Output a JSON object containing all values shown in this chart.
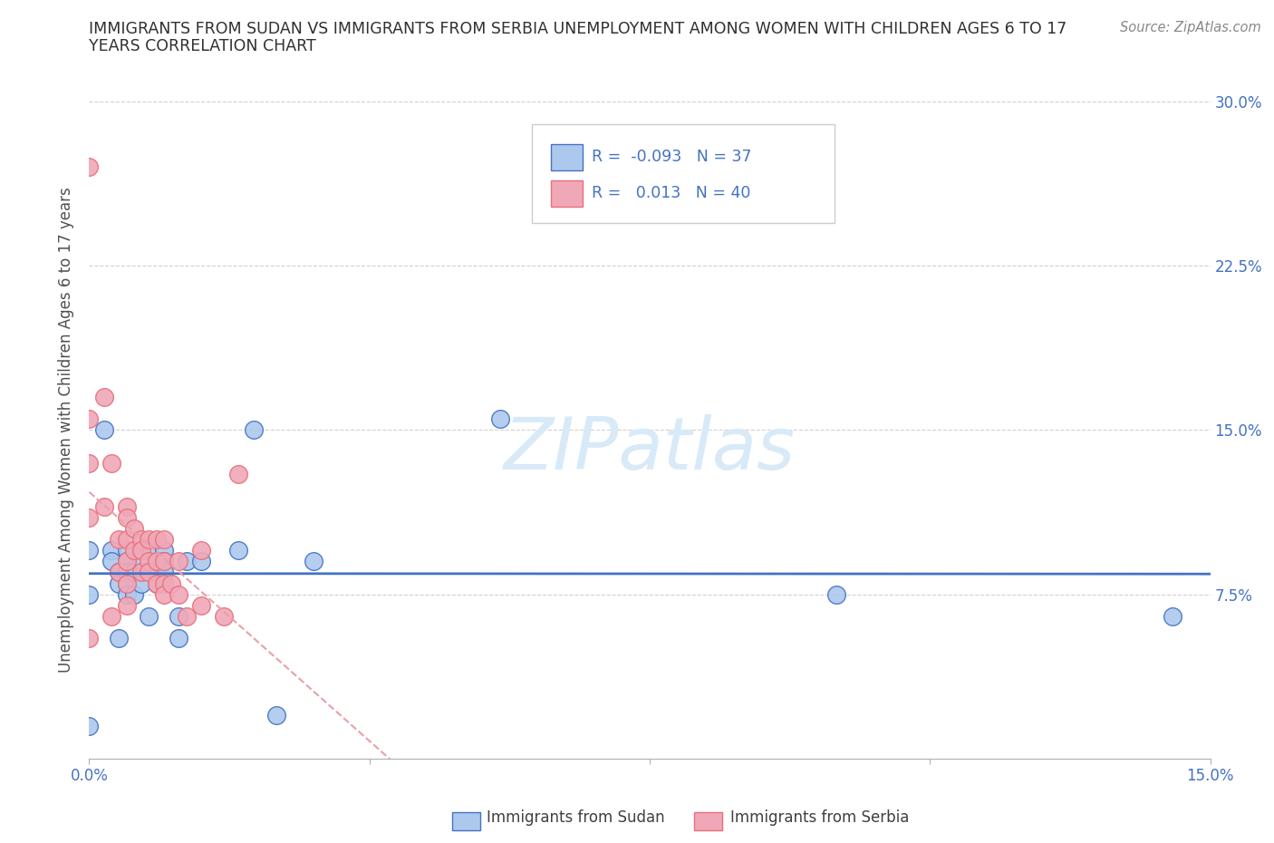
{
  "title_line1": "IMMIGRANTS FROM SUDAN VS IMMIGRANTS FROM SERBIA UNEMPLOYMENT AMONG WOMEN WITH CHILDREN AGES 6 TO 17",
  "title_line2": "YEARS CORRELATION CHART",
  "source_text": "Source: ZipAtlas.com",
  "ylabel": "Unemployment Among Women with Children Ages 6 to 17 years",
  "xlabel_sudan": "Immigrants from Sudan",
  "xlabel_serbia": "Immigrants from Serbia",
  "xlim": [
    0.0,
    0.15
  ],
  "ylim": [
    0.0,
    0.3
  ],
  "yticks": [
    0.0,
    0.075,
    0.15,
    0.225,
    0.3
  ],
  "ytick_labels": [
    "",
    "7.5%",
    "15.0%",
    "22.5%",
    "30.0%"
  ],
  "xticks": [
    0.0,
    0.0375,
    0.075,
    0.1125,
    0.15
  ],
  "xtick_labels": [
    "0.0%",
    "",
    "",
    "",
    "15.0%"
  ],
  "R_sudan": -0.093,
  "N_sudan": 37,
  "R_serbia": 0.013,
  "N_serbia": 40,
  "sudan_color": "#adc8ed",
  "serbia_color": "#f0a8b8",
  "sudan_edge_color": "#4472c4",
  "serbia_edge_color": "#e8707a",
  "sudan_line_color": "#4472c4",
  "serbia_line_color": "#e8a0a8",
  "watermark_color": "#d8eaf8",
  "grid_color": "#d0d0d0",
  "background_color": "#ffffff",
  "title_color": "#303030",
  "axis_label_color": "#505050",
  "tick_color": "#4472c4",
  "sudan_x": [
    0.0,
    0.0,
    0.0,
    0.002,
    0.003,
    0.003,
    0.004,
    0.004,
    0.004,
    0.005,
    0.005,
    0.005,
    0.005,
    0.005,
    0.005,
    0.006,
    0.006,
    0.007,
    0.007,
    0.008,
    0.008,
    0.009,
    0.009,
    0.01,
    0.01,
    0.01,
    0.012,
    0.012,
    0.013,
    0.015,
    0.02,
    0.022,
    0.025,
    0.03,
    0.055,
    0.1,
    0.145
  ],
  "sudan_y": [
    0.095,
    0.075,
    0.015,
    0.15,
    0.095,
    0.09,
    0.085,
    0.08,
    0.055,
    0.095,
    0.09,
    0.085,
    0.085,
    0.08,
    0.075,
    0.085,
    0.075,
    0.09,
    0.08,
    0.095,
    0.065,
    0.085,
    0.08,
    0.095,
    0.09,
    0.085,
    0.065,
    0.055,
    0.09,
    0.09,
    0.095,
    0.15,
    0.02,
    0.09,
    0.155,
    0.075,
    0.065
  ],
  "serbia_x": [
    0.0,
    0.0,
    0.0,
    0.0,
    0.0,
    0.002,
    0.002,
    0.003,
    0.003,
    0.004,
    0.004,
    0.005,
    0.005,
    0.005,
    0.005,
    0.005,
    0.005,
    0.006,
    0.006,
    0.007,
    0.007,
    0.007,
    0.008,
    0.008,
    0.008,
    0.009,
    0.009,
    0.009,
    0.01,
    0.01,
    0.01,
    0.01,
    0.011,
    0.012,
    0.012,
    0.013,
    0.015,
    0.015,
    0.018,
    0.02
  ],
  "serbia_y": [
    0.27,
    0.155,
    0.135,
    0.11,
    0.055,
    0.165,
    0.115,
    0.135,
    0.065,
    0.1,
    0.085,
    0.115,
    0.11,
    0.1,
    0.09,
    0.08,
    0.07,
    0.105,
    0.095,
    0.1,
    0.095,
    0.085,
    0.1,
    0.09,
    0.085,
    0.1,
    0.09,
    0.08,
    0.1,
    0.09,
    0.08,
    0.075,
    0.08,
    0.09,
    0.075,
    0.065,
    0.095,
    0.07,
    0.065,
    0.13
  ]
}
